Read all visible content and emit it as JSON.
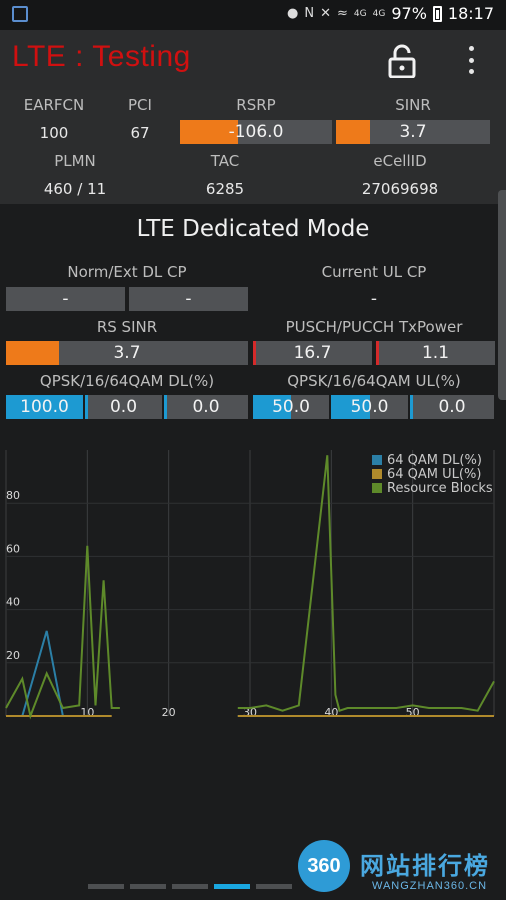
{
  "status_bar": {
    "icons": [
      "app-notification-icon",
      "location-icon",
      "nfc-icon",
      "mute-icon",
      "wifi-icon",
      "signal-4g-icon",
      "signal-4g-icon",
      "battery-icon"
    ],
    "net1": "4G",
    "net2": "4G",
    "battery": "97%",
    "time": "18:17"
  },
  "app_bar": {
    "title": "LTE : Testing",
    "title_color": "#d01010",
    "lock_icon": "unlock-icon",
    "menu_icon": "more-vert-icon"
  },
  "cell_info": {
    "earfcn_label": "EARFCN",
    "earfcn": "100",
    "pci_label": "PCI",
    "pci": "67",
    "rsrp_label": "RSRP",
    "rsrp": "-106.0",
    "rsrp_fill": 0.38,
    "sinr_label": "SINR",
    "sinr": "3.7",
    "sinr_fill": 0.22,
    "plmn_label": "PLMN",
    "plmn": "460 / 11",
    "tac_label": "TAC",
    "tac": "6285",
    "ecellid_label": "eCellID",
    "ecellid": "27069698"
  },
  "dedicated": {
    "title": "LTE Dedicated Mode",
    "norm_ext_label": "Norm/Ext DL CP",
    "norm_ext_1": "-",
    "norm_ext_2": "-",
    "current_ul_label": "Current UL CP",
    "current_ul": "-",
    "rs_sinr_label": "RS SINR",
    "rs_sinr": "3.7",
    "rs_sinr_fill": 0.22,
    "pusch_label": "PUSCH/PUCCH TxPower",
    "pusch": "16.7",
    "pucch": "1.1",
    "dl_label": "QPSK/16/64QAM DL(%)",
    "dl_qpsk": "100.0",
    "dl_qpsk_fill": 1.0,
    "dl_16qam": "0.0",
    "dl_64qam": "0.0",
    "ul_label": "QPSK/16/64QAM UL(%)",
    "ul_qpsk": "50.0",
    "ul_qpsk_fill": 0.5,
    "ul_16qam": "50.0",
    "ul_16qam_fill": 0.5,
    "ul_64qam": "0.0"
  },
  "chart_data": {
    "type": "line",
    "x_ticks": [
      "10",
      "20",
      "30",
      "40",
      "50"
    ],
    "y_ticks": [
      "20",
      "40",
      "60",
      "80"
    ],
    "xlim": [
      0,
      60
    ],
    "ylim": [
      0,
      100
    ],
    "grid": true,
    "legend_position": "top-right",
    "series": [
      {
        "name": "64 QAM DL(%)",
        "color": "#2b7fa6",
        "segments": [
          [
            [
              0,
              0
            ],
            [
              2,
              0
            ],
            [
              5,
              32
            ],
            [
              7,
              0
            ],
            [
              9,
              0
            ],
            [
              10,
              0
            ],
            [
              11,
              0
            ]
          ],
          [
            [
              28.5,
              0
            ],
            [
              36,
              0
            ],
            [
              38,
              0
            ],
            [
              40,
              0
            ]
          ]
        ]
      },
      {
        "name": "64 QAM UL(%)",
        "color": "#b08a2c",
        "segments": [
          [
            [
              0,
              0
            ],
            [
              13,
              0
            ]
          ],
          [
            [
              28.5,
              0
            ],
            [
              60,
              0
            ]
          ]
        ]
      },
      {
        "name": "Resource Blocks",
        "color": "#5e8a2a",
        "segments": [
          [
            [
              0,
              3
            ],
            [
              2,
              14
            ],
            [
              3,
              0
            ],
            [
              5,
              16
            ],
            [
              7,
              3
            ],
            [
              9,
              4
            ],
            [
              10,
              64
            ],
            [
              11,
              4
            ],
            [
              12,
              51
            ],
            [
              13,
              3
            ],
            [
              14,
              3
            ]
          ],
          [
            [
              28.5,
              3
            ],
            [
              30,
              3
            ],
            [
              32,
              4
            ],
            [
              34,
              2
            ],
            [
              36,
              4
            ],
            [
              39.5,
              98
            ],
            [
              40.5,
              8
            ],
            [
              41,
              2
            ],
            [
              42,
              3
            ],
            [
              44,
              3
            ],
            [
              46,
              3
            ],
            [
              48,
              3
            ],
            [
              50,
              4
            ],
            [
              52,
              3
            ],
            [
              54,
              3
            ],
            [
              56,
              3
            ],
            [
              58,
              2
            ],
            [
              60,
              13
            ]
          ]
        ]
      }
    ]
  },
  "pager": {
    "count": 5,
    "active_index": 3
  },
  "watermark": {
    "logo": "360",
    "title": "网站排行榜",
    "subtitle": "WANGZHAN360.CN"
  }
}
